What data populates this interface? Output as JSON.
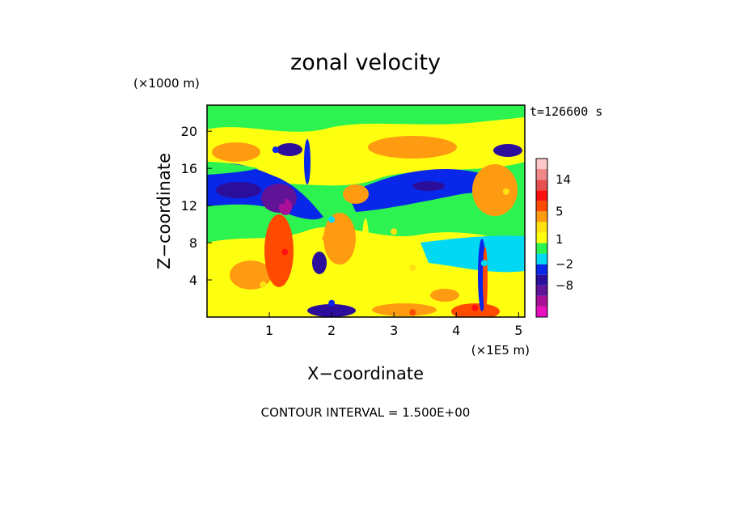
{
  "chart_data": {
    "type": "heatmap",
    "title": "zonal velocity",
    "xlabel": "X−coordinate",
    "ylabel": "Z−coordinate",
    "x_scale_label": "(×1E5 m)",
    "y_scale_label": "(×1000 m)",
    "time_label": "t=126600 s",
    "footer": "CONTOUR INTERVAL = 1.500E+00",
    "xlim": [
      0,
      5.1
    ],
    "ylim": [
      0,
      22.8
    ],
    "x_ticks": [
      "1",
      "2",
      "3",
      "4",
      "5"
    ],
    "y_ticks": [
      "4",
      "8",
      "12",
      "16",
      "20"
    ],
    "colorbar": {
      "levels": [
        -14,
        -11,
        -8,
        -5,
        -2,
        -0.5,
        0.5,
        2,
        3.5,
        5,
        8,
        11,
        14,
        17
      ],
      "tick_labels": [
        "14",
        "5",
        "1",
        "−2",
        "−8"
      ],
      "tick_values": [
        14,
        5,
        1,
        -2,
        -8
      ],
      "colors": [
        "#e80fbf",
        "#aa1097",
        "#611398",
        "#2b0e9b",
        "#0827e8",
        "#00d8f4",
        "#2cf350",
        "#ffff10",
        "#ffe010",
        "#ff9b10",
        "#ff4a00",
        "#ff0f0f",
        "#e85050",
        "#f08888",
        "#ffc8c8"
      ]
    },
    "features": [
      {
        "x": 0.35,
        "z": 18.0,
        "value": 3.5
      },
      {
        "x": 0.55,
        "z": 13.2,
        "value": -6
      },
      {
        "x": 1.2,
        "z": 12.5,
        "value": -9
      },
      {
        "x": 1.3,
        "z": 11.8,
        "value": -12
      },
      {
        "x": 1.25,
        "z": 7.0,
        "value": 8
      },
      {
        "x": 1.9,
        "z": 8.5,
        "value": 4
      },
      {
        "x": 2.0,
        "z": 10.5,
        "value": -2
      },
      {
        "x": 1.1,
        "z": 18.0,
        "value": -5
      },
      {
        "x": 2.3,
        "z": 13.5,
        "value": 4
      },
      {
        "x": 3.3,
        "z": 18.8,
        "value": 4
      },
      {
        "x": 3.5,
        "z": 15.0,
        "value": -3
      },
      {
        "x": 3.0,
        "z": 9.2,
        "value": 2
      },
      {
        "x": 3.3,
        "z": 5.3,
        "value": 2
      },
      {
        "x": 4.45,
        "z": 5.8,
        "value": -1
      },
      {
        "x": 4.85,
        "z": 18.0,
        "value": -6
      },
      {
        "x": 4.8,
        "z": 13.5,
        "value": 3
      },
      {
        "x": 4.3,
        "z": 1.0,
        "value": 8
      },
      {
        "x": 3.3,
        "z": 0.5,
        "value": 5
      },
      {
        "x": 2.0,
        "z": 1.5,
        "value": -4
      },
      {
        "x": 0.9,
        "z": 3.5,
        "value": 3
      }
    ]
  }
}
